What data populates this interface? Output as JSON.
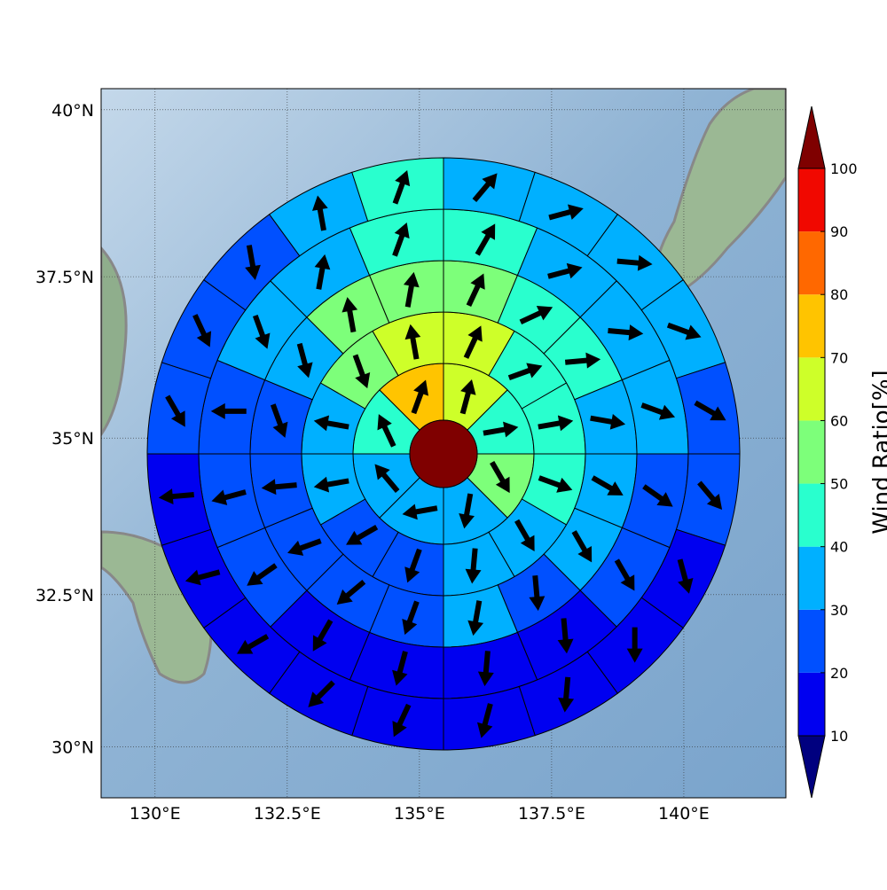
{
  "chart_data": {
    "type": "wind-rose-map",
    "projection": "mercator",
    "xlim": [
      128.98,
      141.93
    ],
    "ylim": [
      29.15,
      40.31
    ],
    "xticks": [
      {
        "value": 130,
        "label": "130°E"
      },
      {
        "value": 132.5,
        "label": "132.5°E"
      },
      {
        "value": 135,
        "label": "135°E"
      },
      {
        "value": 137.5,
        "label": "137.5°E"
      },
      {
        "value": 140,
        "label": "140°E"
      }
    ],
    "yticks": [
      {
        "value": 30,
        "label": "30°N"
      },
      {
        "value": 32.5,
        "label": "32.5°N"
      },
      {
        "value": 35,
        "label": "35°N"
      },
      {
        "value": 37.5,
        "label": "37.5°N"
      },
      {
        "value": 40,
        "label": "40°N"
      }
    ],
    "grid": true,
    "rings": [
      {
        "values": [
          65,
          45,
          55,
          35,
          35,
          35,
          45,
          75
        ],
        "directions": [
          15,
          80,
          150,
          190,
          260,
          320,
          335,
          20
        ]
      },
      {
        "values": [
          65,
          45,
          45,
          45,
          35,
          35,
          25,
          25,
          35,
          35,
          55,
          65
        ],
        "directions": [
          25,
          70,
          80,
          110,
          150,
          185,
          200,
          240,
          260,
          280,
          160,
          350
        ]
      },
      {
        "values": [
          55,
          45,
          45,
          35,
          35,
          35,
          25,
          35,
          25,
          25,
          25,
          25,
          25,
          35,
          55,
          55
        ],
        "directions": [
          25,
          65,
          85,
          100,
          120,
          150,
          175,
          190,
          200,
          230,
          250,
          265,
          160,
          165,
          350,
          10
        ]
      },
      {
        "values": [
          45,
          35,
          35,
          35,
          25,
          25,
          15,
          15,
          15,
          15,
          25,
          25,
          25,
          35,
          35,
          45
        ],
        "directions": [
          30,
          75,
          95,
          110,
          125,
          150,
          175,
          185,
          195,
          210,
          235,
          255,
          270,
          160,
          10,
          20
        ]
      },
      {
        "values": [
          35,
          35,
          35,
          35,
          25,
          25,
          15,
          15,
          15,
          15,
          15,
          15,
          15,
          15,
          15,
          25,
          25,
          25,
          35,
          45
        ],
        "directions": [
          40,
          75,
          95,
          110,
          120,
          140,
          165,
          180,
          185,
          195,
          205,
          225,
          240,
          255,
          265,
          150,
          155,
          170,
          350,
          20
        ]
      }
    ],
    "levels": [
      10,
      20,
      30,
      40,
      50,
      60,
      70,
      80,
      90,
      100
    ],
    "colors": [
      "#0000f0",
      "#0050ff",
      "#00b0ff",
      "#29ffce",
      "#7dff7a",
      "#ceff29",
      "#ffc400",
      "#ff6800",
      "#f10800"
    ],
    "under_color": "#00007f",
    "over_color": "#7f0000",
    "colorbar_ticks": [
      10,
      20,
      30,
      40,
      50,
      60,
      70,
      80,
      90,
      100
    ],
    "colorbar_label": "Wind Ratio[%]"
  }
}
